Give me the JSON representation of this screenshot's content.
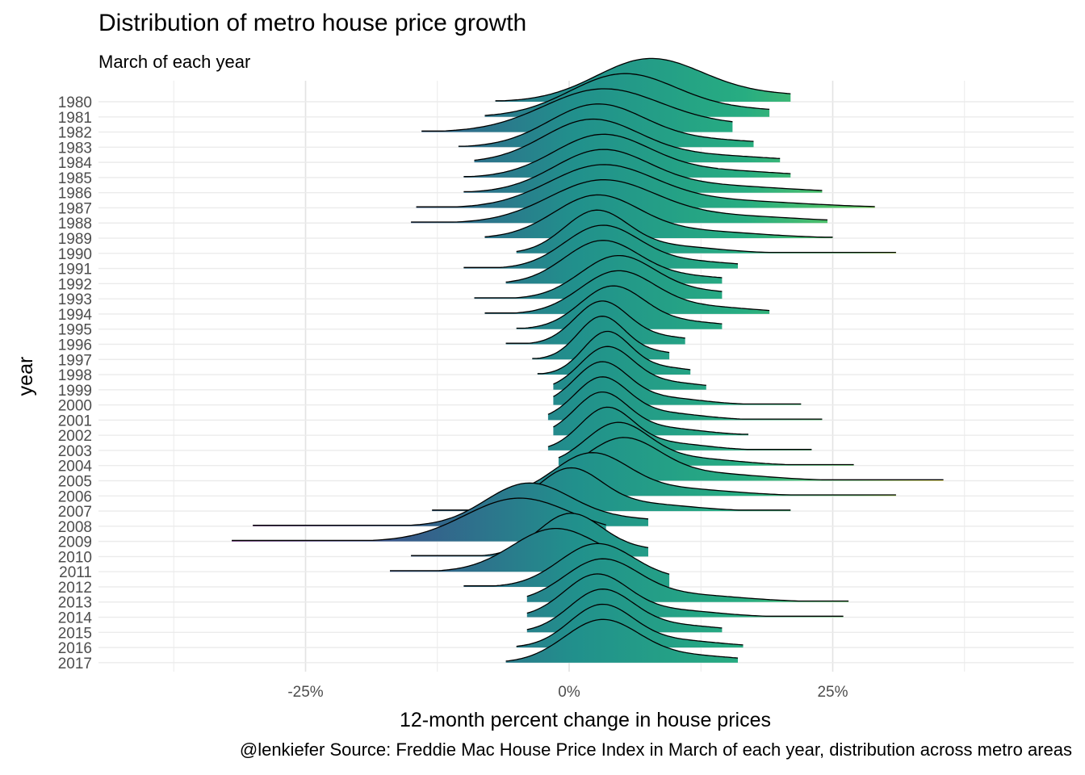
{
  "chart_data": {
    "type": "area",
    "title": "Distribution of metro house price growth",
    "subtitle": "March of each year",
    "xlabel": "12-month percent change in house prices",
    "ylabel": "year",
    "caption": "@lenkiefer Source: Freddie Mac House Price Index in March of each year, distribution across metro areas",
    "xlim": [
      -45,
      47
    ],
    "x_ticks": [
      -25,
      0,
      25
    ],
    "x_tick_labels": [
      "-25%",
      "0%",
      "25%"
    ],
    "grid": true,
    "legend": "none",
    "colormap": "viridis",
    "color_low": "#440154",
    "color_mid": "#21908C",
    "color_high": "#FDE725",
    "series": [
      {
        "year": "1980",
        "center": 7.5,
        "sd": 5.0,
        "min": -7,
        "max": 21
      },
      {
        "year": "1981",
        "center": 5.0,
        "sd": 5.0,
        "min": -8,
        "max": 19
      },
      {
        "year": "1982",
        "center": 3.0,
        "sd": 5.5,
        "min": -14,
        "max": 15.5
      },
      {
        "year": "1983",
        "center": 2.5,
        "sd": 4.5,
        "min": -10.5,
        "max": 17.5
      },
      {
        "year": "1984",
        "center": 2.0,
        "sd": 4.5,
        "min": -9,
        "max": 20
      },
      {
        "year": "1985",
        "center": 3.0,
        "sd": 4.5,
        "min": -10,
        "max": 21
      },
      {
        "year": "1986",
        "center": 3.0,
        "sd": 4.5,
        "min": -10,
        "max": 24
      },
      {
        "year": "1987",
        "center": 3.0,
        "sd": 5.0,
        "min": -14.5,
        "max": 29
      },
      {
        "year": "1988",
        "center": 3.0,
        "sd": 5.0,
        "min": -15,
        "max": 24.5
      },
      {
        "year": "1989",
        "center": 2.5,
        "sd": 4.0,
        "min": -8,
        "max": 25
      },
      {
        "year": "1990",
        "center": 2.5,
        "sd": 3.0,
        "min": -5,
        "max": 31
      },
      {
        "year": "1991",
        "center": 3.0,
        "sd": 3.5,
        "min": -10,
        "max": 16
      },
      {
        "year": "1992",
        "center": 3.0,
        "sd": 3.5,
        "min": -6,
        "max": 14.5
      },
      {
        "year": "1993",
        "center": 4.5,
        "sd": 3.5,
        "min": -9,
        "max": 14.5
      },
      {
        "year": "1994",
        "center": 4.5,
        "sd": 3.5,
        "min": -8,
        "max": 19
      },
      {
        "year": "1995",
        "center": 4.0,
        "sd": 3.0,
        "min": -5,
        "max": 14.5
      },
      {
        "year": "1996",
        "center": 3.0,
        "sd": 2.5,
        "min": -6,
        "max": 11
      },
      {
        "year": "1997",
        "center": 3.0,
        "sd": 2.2,
        "min": -3.5,
        "max": 9.5
      },
      {
        "year": "1998",
        "center": 3.5,
        "sd": 2.2,
        "min": -3,
        "max": 11.5
      },
      {
        "year": "1999",
        "center": 3.5,
        "sd": 2.5,
        "min": -1.5,
        "max": 13
      },
      {
        "year": "2000",
        "center": 3.0,
        "sd": 2.5,
        "min": -1.5,
        "max": 22
      },
      {
        "year": "2001",
        "center": 3.0,
        "sd": 2.5,
        "min": -2,
        "max": 24
      },
      {
        "year": "2002",
        "center": 3.0,
        "sd": 2.5,
        "min": -1.5,
        "max": 17
      },
      {
        "year": "2003",
        "center": 3.5,
        "sd": 2.5,
        "min": -2,
        "max": 23
      },
      {
        "year": "2004",
        "center": 4.5,
        "sd": 3.0,
        "min": -1,
        "max": 27
      },
      {
        "year": "2005",
        "center": 5.0,
        "sd": 3.5,
        "min": -1.5,
        "max": 35.5
      },
      {
        "year": "2006",
        "center": 2.0,
        "sd": 3.5,
        "min": -3.5,
        "max": 31
      },
      {
        "year": "2007",
        "center": 0.0,
        "sd": 3.0,
        "min": -13,
        "max": 21
      },
      {
        "year": "2008",
        "center": -4.0,
        "sd": 4.0,
        "min": -30,
        "max": 7.5
      },
      {
        "year": "2009",
        "center": -5.0,
        "sd": 5.0,
        "min": -32,
        "max": 3.5
      },
      {
        "year": "2010",
        "center": 0.0,
        "sd": 3.0,
        "min": -15,
        "max": 7.5
      },
      {
        "year": "2011",
        "center": -1.5,
        "sd": 4.0,
        "min": -17,
        "max": 4
      },
      {
        "year": "2012",
        "center": 2.5,
        "sd": 3.5,
        "min": -10,
        "max": 9.5
      },
      {
        "year": "2013",
        "center": 3.0,
        "sd": 3.5,
        "min": -4,
        "max": 26.5
      },
      {
        "year": "2014",
        "center": 2.5,
        "sd": 3.0,
        "min": -4,
        "max": 26
      },
      {
        "year": "2015",
        "center": 3.0,
        "sd": 3.0,
        "min": -4,
        "max": 14.5
      },
      {
        "year": "2016",
        "center": 3.0,
        "sd": 3.0,
        "min": -5,
        "max": 16.5
      },
      {
        "year": "2017",
        "center": 3.0,
        "sd": 3.5,
        "min": -6,
        "max": 16
      }
    ]
  }
}
